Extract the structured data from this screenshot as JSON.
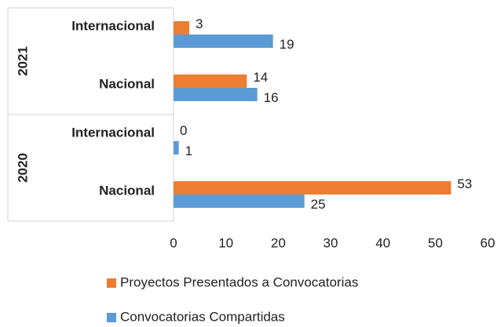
{
  "chart_data": {
    "type": "bar",
    "orientation": "horizontal",
    "groups": [
      {
        "name": "2021",
        "categories": [
          "Internacional",
          "Nacional"
        ]
      },
      {
        "name": "2020",
        "categories": [
          "Internacional",
          "Nacional"
        ]
      }
    ],
    "series": [
      {
        "name": "Proyectos Presentados a Convocatorias",
        "color": "#ed7d31",
        "values": [
          3,
          14,
          0,
          53
        ]
      },
      {
        "name": "Convocatorias Compartidas",
        "color": "#5b9bd5",
        "values": [
          19,
          16,
          1,
          25
        ]
      }
    ],
    "xlim": [
      0,
      60
    ],
    "xticks": [
      0,
      10,
      20,
      30,
      40,
      50,
      60
    ],
    "data_labels": true,
    "legend": "bottom"
  }
}
